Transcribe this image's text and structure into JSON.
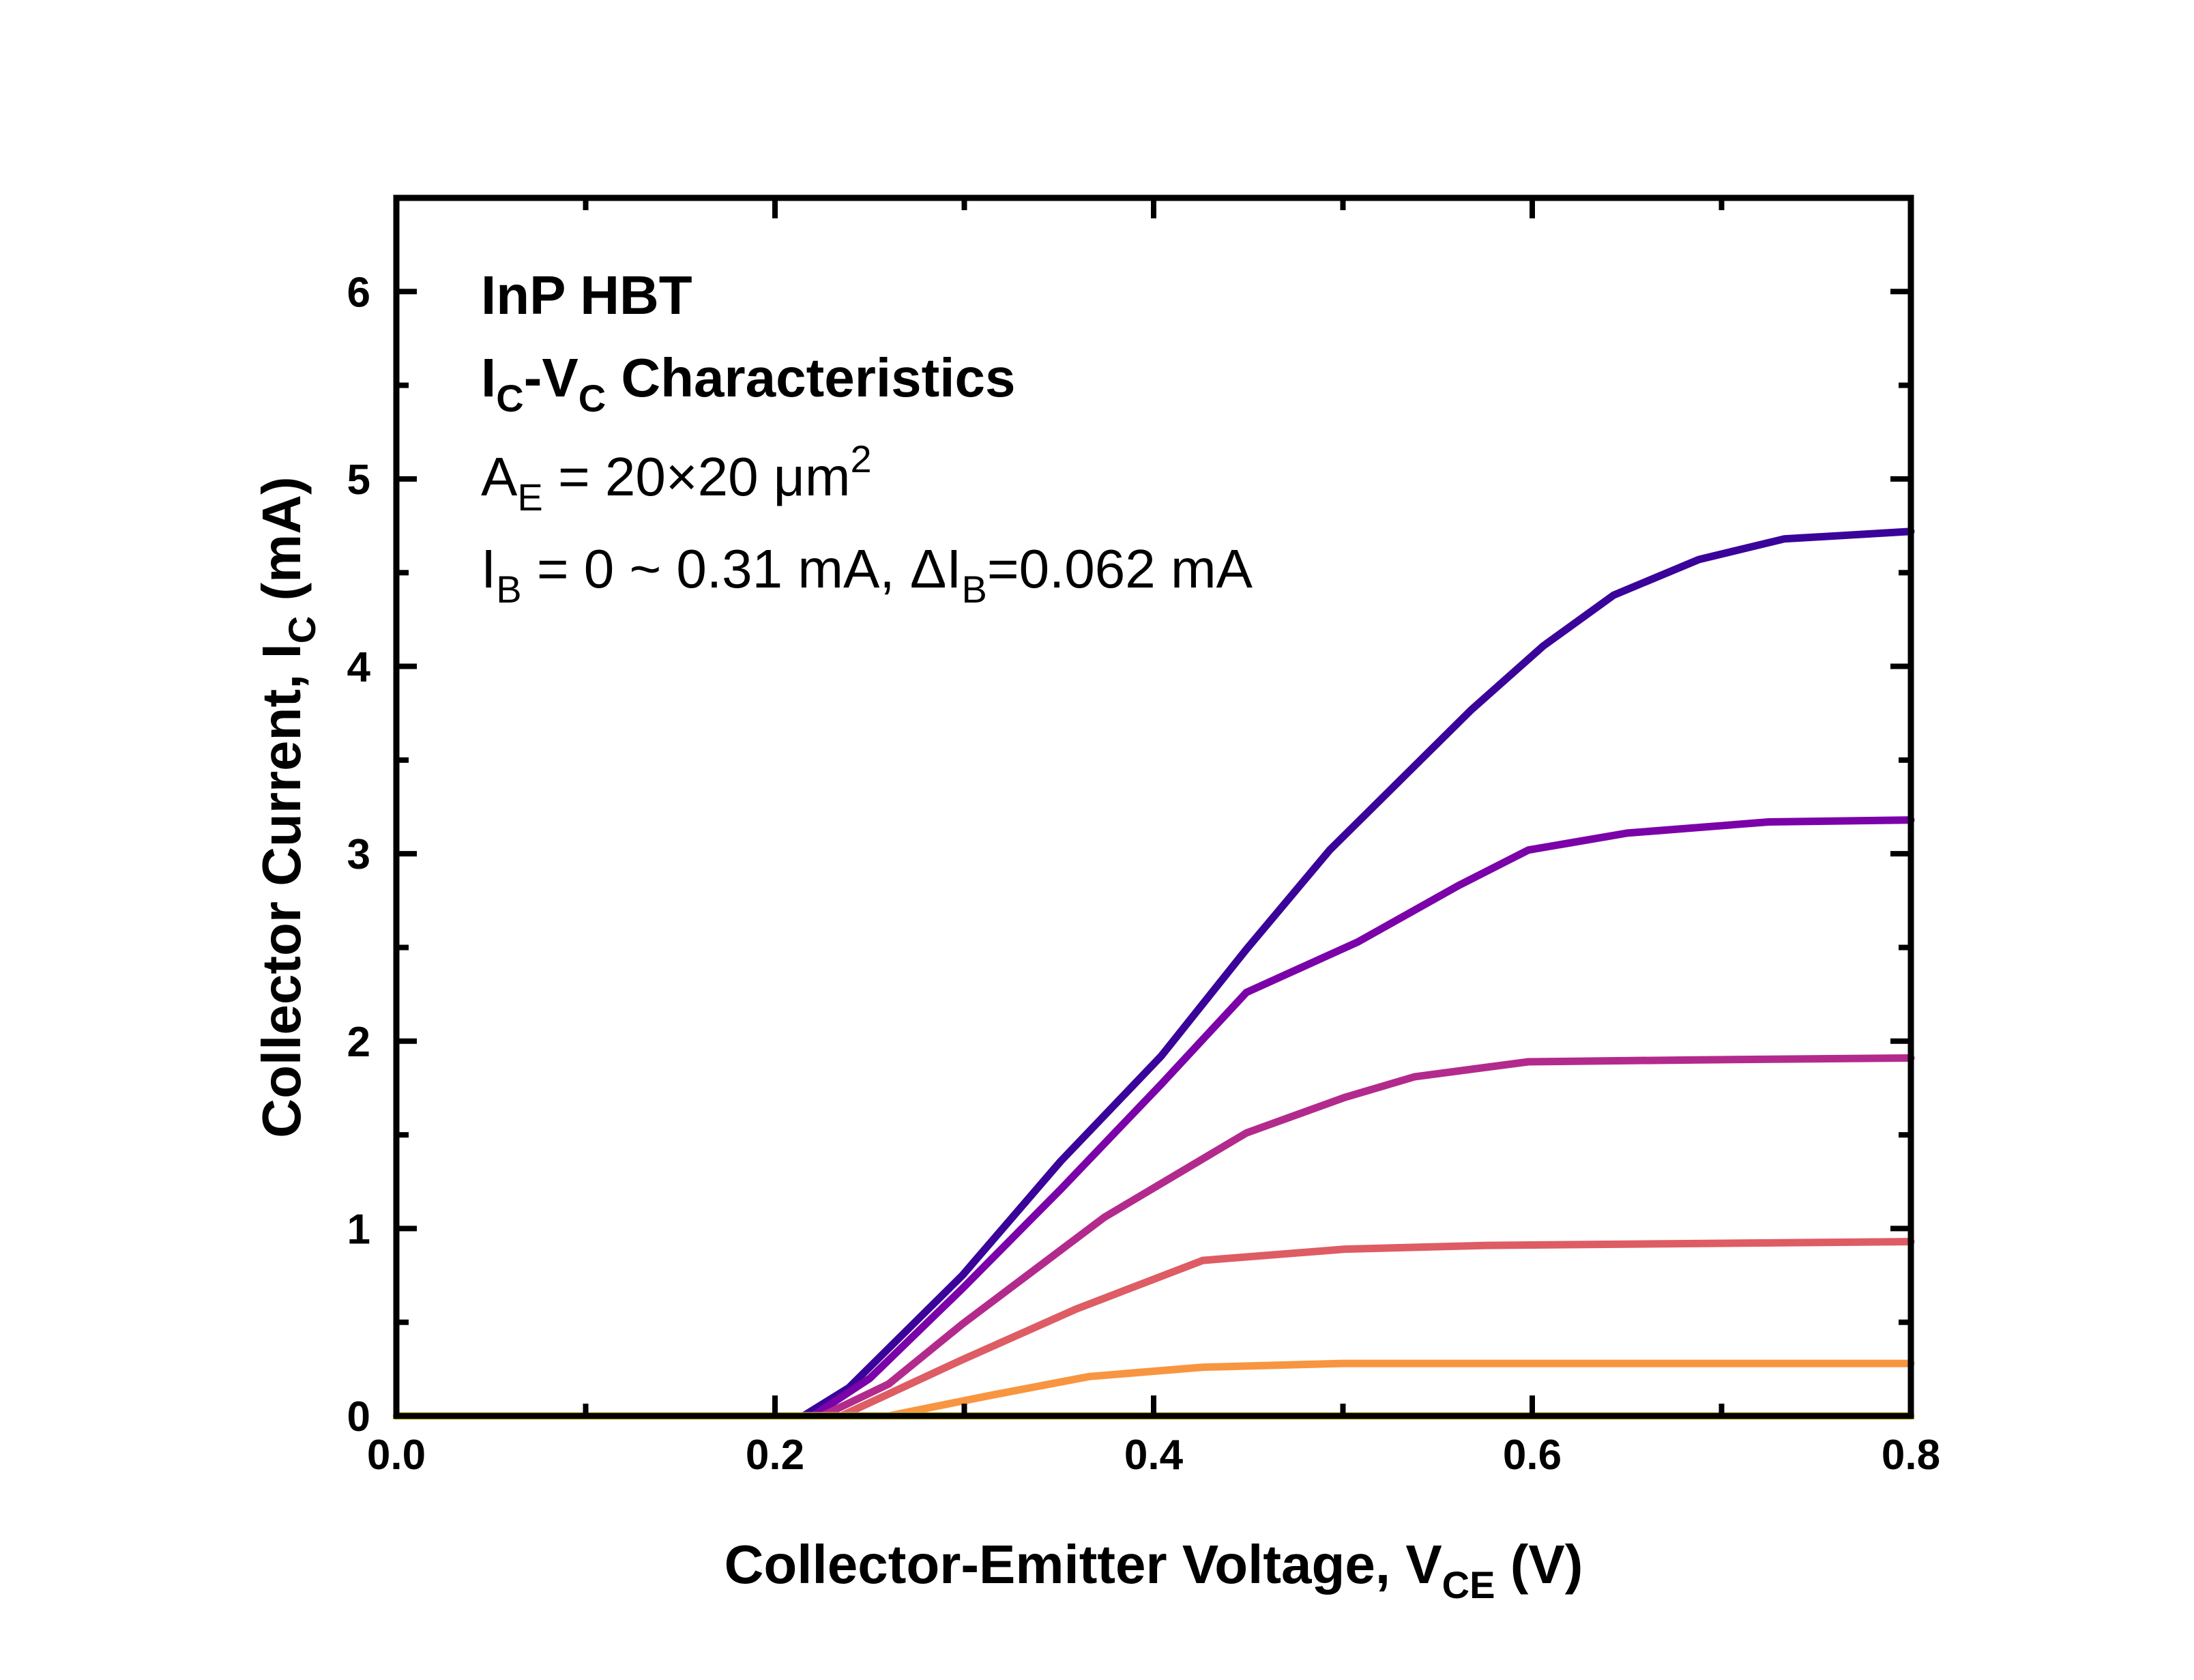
{
  "chart_data": {
    "type": "line",
    "xlabel": {
      "main": "Collector-Emitter Voltage, V",
      "sub": "CE",
      "unit": " (V)"
    },
    "ylabel": {
      "main": "Collector Current, I",
      "sub": "C",
      "unit": " (mA)"
    },
    "xlim": [
      0,
      0.8
    ],
    "ylim": [
      0,
      6.5
    ],
    "x_ticks": [
      "0.0",
      "0.2",
      "0.4",
      "0.6",
      "0.8"
    ],
    "y_ticks": [
      "0",
      "1",
      "2",
      "3",
      "4",
      "5",
      "6"
    ],
    "grid": false,
    "annotations": {
      "line1": "InP HBT",
      "line2": {
        "a": "I",
        "a_sub": "C",
        "b": "-V",
        "b_sub": "C",
        "c": " Characteristics"
      },
      "line3": {
        "a": "A",
        "a_sub": "E",
        "b": " = 20×20 μm",
        "b_sup": "2"
      },
      "line4": {
        "a": "I",
        "a_sub": "B",
        "b": " = 0 ~ 0.31 mA, ΔI",
        "b_sub": "B",
        "c": "=0.062 mA"
      }
    },
    "series": [
      {
        "color": "#3a049a",
        "points": [
          [
            0.215,
            0
          ],
          [
            0.239,
            0.15
          ],
          [
            0.299,
            0.75
          ],
          [
            0.351,
            1.36
          ],
          [
            0.404,
            1.92
          ],
          [
            0.449,
            2.49
          ],
          [
            0.493,
            3.02
          ],
          [
            0.531,
            3.4
          ],
          [
            0.568,
            3.77
          ],
          [
            0.606,
            4.11
          ],
          [
            0.643,
            4.38
          ],
          [
            0.688,
            4.57
          ],
          [
            0.733,
            4.68
          ],
          [
            0.8,
            4.72
          ]
        ]
      },
      {
        "color": "#7b02a8",
        "points": [
          [
            0.22,
            0
          ],
          [
            0.25,
            0.2
          ],
          [
            0.299,
            0.68
          ],
          [
            0.351,
            1.21
          ],
          [
            0.404,
            1.77
          ],
          [
            0.449,
            2.26
          ],
          [
            0.508,
            2.53
          ],
          [
            0.561,
            2.83
          ],
          [
            0.598,
            3.02
          ],
          [
            0.65,
            3.11
          ],
          [
            0.725,
            3.17
          ],
          [
            0.8,
            3.18
          ]
        ]
      },
      {
        "color": "#b32a8d",
        "points": [
          [
            0.225,
            0
          ],
          [
            0.26,
            0.17
          ],
          [
            0.299,
            0.49
          ],
          [
            0.374,
            1.06
          ],
          [
            0.449,
            1.51
          ],
          [
            0.501,
            1.7
          ],
          [
            0.538,
            1.81
          ],
          [
            0.598,
            1.89
          ],
          [
            0.688,
            1.9
          ],
          [
            0.8,
            1.91
          ]
        ]
      },
      {
        "color": "#de5c64",
        "points": [
          [
            0.235,
            0
          ],
          [
            0.299,
            0.3
          ],
          [
            0.359,
            0.57
          ],
          [
            0.426,
            0.83
          ],
          [
            0.501,
            0.89
          ],
          [
            0.576,
            0.91
          ],
          [
            0.8,
            0.93
          ]
        ]
      },
      {
        "color": "#f89540",
        "points": [
          [
            0.26,
            0
          ],
          [
            0.314,
            0.11
          ],
          [
            0.366,
            0.21
          ],
          [
            0.426,
            0.26
          ],
          [
            0.5,
            0.28
          ],
          [
            0.8,
            0.28
          ]
        ]
      },
      {
        "color": "#f0e020",
        "points": [
          [
            0.0,
            0
          ],
          [
            0.8,
            0
          ]
        ]
      }
    ]
  }
}
